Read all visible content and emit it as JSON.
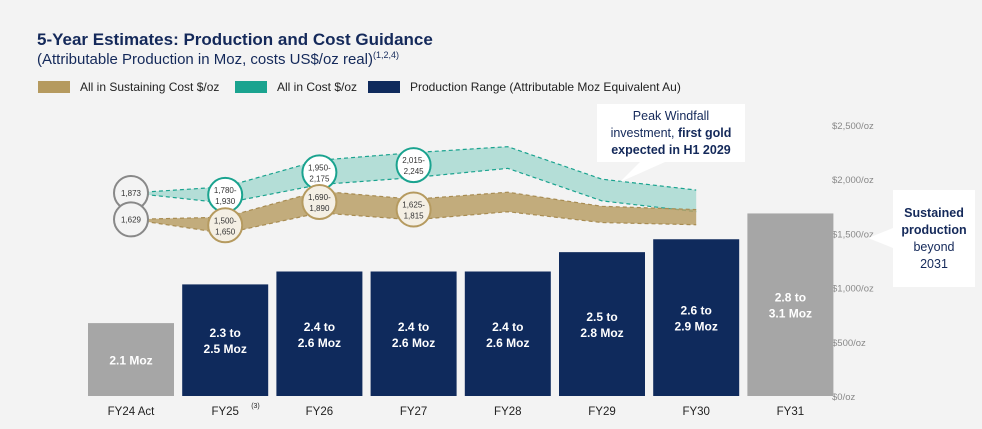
{
  "header": {
    "title": "5-Year Estimates: Production and Cost Guidance",
    "subtitle": "(Attributable Production in Moz, costs US$/oz real)",
    "subtitle_note": "(1,2,4)"
  },
  "legend": [
    {
      "label": "All in Sustaining Cost $/oz",
      "color": "#b59a5f"
    },
    {
      "label": "All in Cost $/oz",
      "color": "#1aa38f"
    },
    {
      "label": "Production Range (Attributable Moz Equivalent Au)",
      "color": "#0f2a5c"
    }
  ],
  "callouts": {
    "peak_line1": "Peak Windfall",
    "peak_line2a": "investment, ",
    "peak_line2b": "first gold",
    "peak_line3": "expected in H1 2029",
    "sustained_bold1": "Sustained",
    "sustained_bold2": "production",
    "sustained_3": "beyond",
    "sustained_4": "2031"
  },
  "chart_data": {
    "type": "bar",
    "categories": [
      "FY24 Act",
      "FY25",
      "FY26",
      "FY27",
      "FY28",
      "FY29",
      "FY30",
      "FY31"
    ],
    "category_notes": {
      "FY25": "(3)"
    },
    "production_labels": [
      "2.1 Moz",
      "2.3 to 2.5 Moz",
      "2.4 to 2.6 Moz",
      "2.4 to 2.6 Moz",
      "2.4 to 2.6 Moz",
      "2.5 to 2.8 Moz",
      "2.6 to 2.9 Moz",
      "2.8 to 3.1 Moz"
    ],
    "production_mid": [
      2.1,
      2.4,
      2.5,
      2.5,
      2.5,
      2.65,
      2.75,
      2.95
    ],
    "bar_colors": [
      "#a6a6a6",
      "#0f2a5c",
      "#0f2a5c",
      "#0f2a5c",
      "#0f2a5c",
      "#0f2a5c",
      "#0f2a5c",
      "#a6a6a6"
    ],
    "y_ticks": [
      "$0/oz",
      "$500/oz",
      "$1,000/oz",
      "$1,500/oz",
      "$2,000/oz",
      "$2,500/oz"
    ],
    "ylim": [
      0,
      2500
    ],
    "aic": {
      "low": [
        1873,
        1780,
        1950,
        2015,
        2100,
        1800,
        1700
      ],
      "high": [
        1873,
        1930,
        2175,
        2245,
        2300,
        2000,
        1900
      ]
    },
    "aisc": {
      "low": [
        1629,
        1500,
        1690,
        1625,
        1700,
        1600,
        1580
      ],
      "high": [
        1629,
        1650,
        1890,
        1815,
        1880,
        1750,
        1720
      ]
    },
    "aic_labels": [
      [
        "1,873"
      ],
      [
        "1,780-",
        "1,930"
      ],
      [
        "1,950-",
        "2,175"
      ],
      [
        "2,015-",
        "2,245"
      ]
    ],
    "aisc_labels": [
      [
        "1,629"
      ],
      [
        "1,500-",
        "1,650"
      ],
      [
        "1,690-",
        "1,890"
      ],
      [
        "1,625-",
        "1,815"
      ]
    ]
  }
}
